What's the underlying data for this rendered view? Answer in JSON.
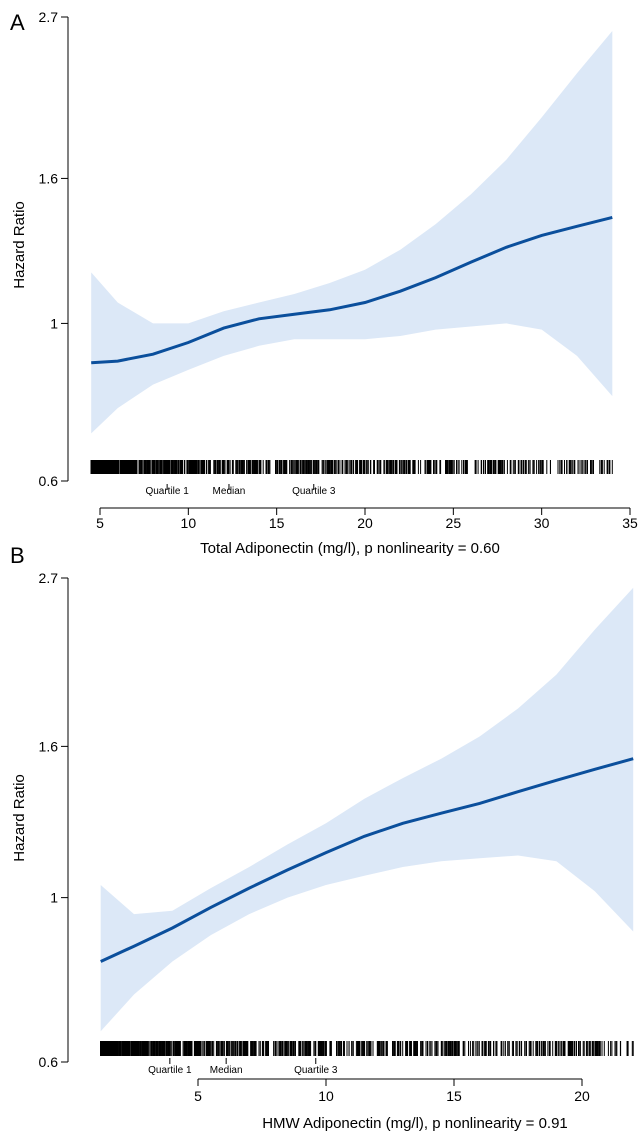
{
  "chart_data": [
    {
      "panel_label": "A",
      "type": "line",
      "xlabel": "Total Adiponectin (mg/l), p nonlinearity = 0.60",
      "ylabel": "Hazard Ratio",
      "xlim": [
        4.5,
        35
      ],
      "ylim": [
        0.6,
        2.7
      ],
      "y_scale": "log",
      "x_ticks": [
        5,
        10,
        15,
        20,
        25,
        30,
        35
      ],
      "x_tick_labels": [
        "5",
        "10",
        "15",
        "20",
        "25",
        "30",
        "35"
      ],
      "y_ticks": [
        0.6,
        1,
        1.6,
        2.7
      ],
      "y_tick_labels": [
        "0.6",
        "1",
        "1.6",
        "2.7"
      ],
      "quartile_markers": [
        {
          "label": "Quartile 1",
          "x": 8.8
        },
        {
          "label": "Median",
          "x": 12.3
        },
        {
          "label": "Quartile 3",
          "x": 17.1
        }
      ],
      "series": [
        {
          "role": "estimate",
          "x": [
            4.5,
            6,
            8,
            10,
            12,
            14,
            16,
            18,
            20,
            22,
            24,
            26,
            28,
            30,
            32,
            34
          ],
          "y": [
            0.88,
            0.885,
            0.905,
            0.94,
            0.985,
            1.015,
            1.03,
            1.045,
            1.07,
            1.11,
            1.16,
            1.22,
            1.28,
            1.33,
            1.37,
            1.41
          ]
        },
        {
          "role": "ci_upper",
          "x": [
            4.5,
            6,
            8,
            10,
            12,
            14,
            16,
            18,
            20,
            22,
            24,
            26,
            28,
            30,
            32,
            34
          ],
          "y": [
            1.18,
            1.07,
            1.0,
            1.0,
            1.04,
            1.07,
            1.1,
            1.14,
            1.19,
            1.27,
            1.38,
            1.52,
            1.7,
            1.95,
            2.25,
            2.58
          ]
        },
        {
          "role": "ci_lower",
          "x": [
            4.5,
            6,
            8,
            10,
            12,
            14,
            16,
            18,
            20,
            22,
            24,
            26,
            28,
            30,
            32,
            34
          ],
          "y": [
            0.7,
            0.76,
            0.82,
            0.86,
            0.9,
            0.93,
            0.95,
            0.95,
            0.95,
            0.96,
            0.98,
            0.99,
            1.0,
            0.98,
            0.9,
            0.79
          ]
        }
      ],
      "rug_range": [
        4.5,
        34
      ],
      "rug_density": "dense at low values, sparse above 20"
    },
    {
      "panel_label": "B",
      "type": "line",
      "xlabel": "HMW Adiponectin (mg/l), p nonlinearity = 0.91",
      "ylabel": "Hazard Ratio",
      "xlim": [
        1,
        22
      ],
      "ylim": [
        0.6,
        2.7
      ],
      "y_scale": "log",
      "x_ticks": [
        5,
        10,
        15,
        20
      ],
      "x_tick_labels": [
        "5",
        "10",
        "15",
        "20"
      ],
      "y_ticks": [
        0.6,
        1,
        1.6,
        2.7
      ],
      "y_tick_labels": [
        "0.6",
        "1",
        "1.6",
        "2.7"
      ],
      "quartile_markers": [
        {
          "label": "Quartile 1",
          "x": 3.9
        },
        {
          "label": "Median",
          "x": 6.1
        },
        {
          "label": "Quartile 3",
          "x": 9.6
        }
      ],
      "series": [
        {
          "role": "estimate",
          "x": [
            1.2,
            2.5,
            4,
            5.5,
            7,
            8.5,
            10,
            11.5,
            13,
            14.5,
            16,
            17.5,
            19,
            20.5,
            22
          ],
          "y": [
            0.82,
            0.86,
            0.91,
            0.97,
            1.03,
            1.09,
            1.15,
            1.21,
            1.26,
            1.3,
            1.34,
            1.39,
            1.44,
            1.49,
            1.54
          ]
        },
        {
          "role": "ci_upper",
          "x": [
            1.2,
            2.5,
            4,
            5.5,
            7,
            8.5,
            10,
            11.5,
            13,
            14.5,
            16,
            17.5,
            19,
            20.5,
            22
          ],
          "y": [
            1.04,
            0.95,
            0.96,
            1.03,
            1.1,
            1.18,
            1.26,
            1.36,
            1.45,
            1.54,
            1.65,
            1.8,
            2.0,
            2.3,
            2.62
          ]
        },
        {
          "role": "ci_lower",
          "x": [
            1.2,
            2.5,
            4,
            5.5,
            7,
            8.5,
            10,
            11.5,
            13,
            14.5,
            16,
            17.5,
            19,
            20.5,
            22
          ],
          "y": [
            0.66,
            0.74,
            0.82,
            0.89,
            0.95,
            1.0,
            1.04,
            1.07,
            1.1,
            1.12,
            1.13,
            1.14,
            1.12,
            1.02,
            0.9
          ]
        }
      ],
      "rug_range": [
        1.2,
        22
      ],
      "rug_density": "dense at low values, sparse above 12"
    }
  ]
}
